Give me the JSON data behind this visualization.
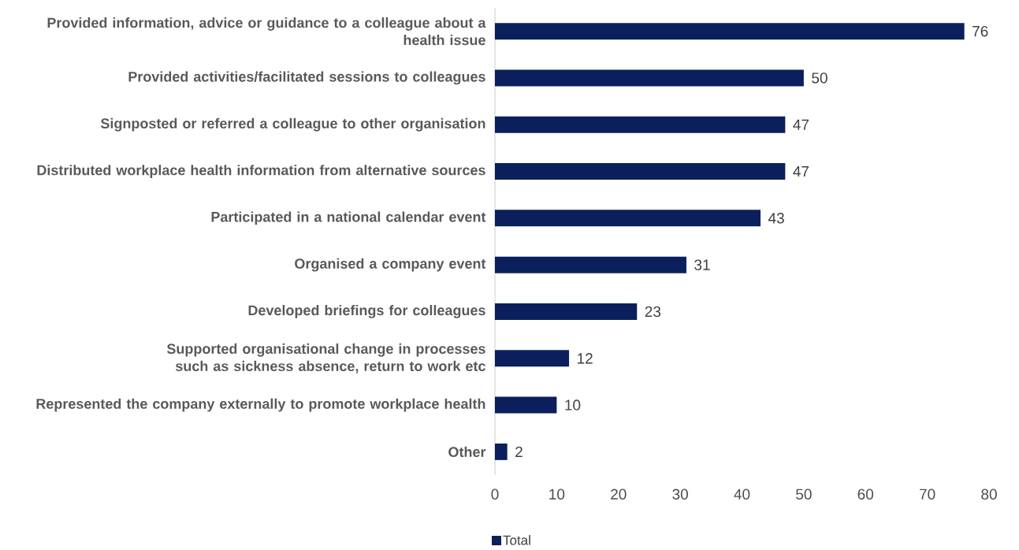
{
  "chart_data": {
    "type": "bar",
    "orientation": "horizontal",
    "categories": [
      "Provided information, advice or guidance to a colleague about a health issue",
      "Provided activities/facilitated sessions to colleagues",
      "Signposted or referred a colleague to other organisation",
      "Distributed workplace health information from alternative sources",
      "Participated in a national calendar event",
      "Organised a company event",
      "Developed briefings for colleagues",
      "Supported organisational change in processes such as sickness absence, return to work etc",
      "Represented the company externally to promote workplace health",
      "Other"
    ],
    "series": [
      {
        "name": "Total",
        "color": "#0a1f5c",
        "values": [
          76,
          50,
          47,
          47,
          43,
          31,
          23,
          12,
          10,
          2
        ]
      }
    ],
    "xlim": [
      0,
      80
    ],
    "xticks": [
      0,
      10,
      20,
      30,
      40,
      50,
      60,
      70,
      80
    ],
    "data_labels": true,
    "legend": "bottom",
    "grid": false
  }
}
